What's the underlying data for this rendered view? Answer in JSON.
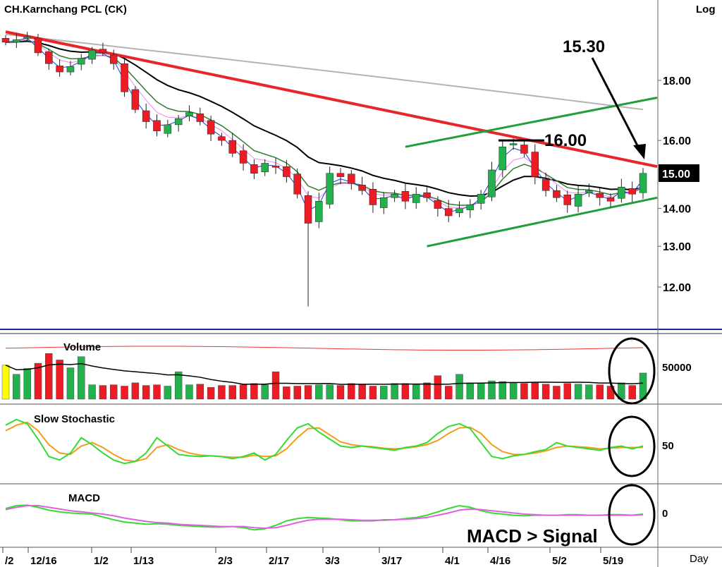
{
  "header": {
    "title": "CH.Karnchang  PCL  (CK)",
    "scale_label": "Log",
    "period_label": "Day"
  },
  "x_axis": {
    "labels": [
      "/2",
      "12/16",
      "1/2",
      "1/13",
      "2/3",
      "2/17",
      "3/3",
      "3/17",
      "4/1",
      "4/16",
      "5/2",
      "5/19"
    ]
  },
  "price_panel": {
    "y_ticks": [
      "18.00",
      "16.00",
      "15.00",
      "14.00",
      "13.00",
      "12.00"
    ],
    "last_price_tag": "15.00",
    "annotations": [
      "16.00",
      "15.30"
    ]
  },
  "volume_panel": {
    "title": "Volume",
    "y_tick": "50000"
  },
  "stochastic_panel": {
    "title": "Slow  Stochastic",
    "y_tick": "50"
  },
  "macd_panel": {
    "title": "MACD",
    "y_tick": "0",
    "note": "MACD > Signal"
  },
  "colors": {
    "up": "#22b14c",
    "down": "#ed1c24",
    "neutral_volume": "#ffff00",
    "resistance": "#e8262a",
    "channel": "#1f9e3a",
    "ma_black": "#000000",
    "ma_gray": "#b4b4b4",
    "ma_green": "#2f7d2f",
    "ma_pink": "#ee88ee",
    "ma_blue": "#1c3fd6",
    "stoch_k": "#32dc32",
    "stoch_d": "#f59b1a",
    "macd": "#32dc32",
    "signal": "#e060e0"
  },
  "chart_data": {
    "type": "candlestick",
    "title": "CH.Karnchang  PCL  (CK)",
    "scale": "log",
    "x_labels": [
      "/2",
      "12/16",
      "1/2",
      "1/13",
      "2/3",
      "2/17",
      "3/3",
      "3/17",
      "4/1",
      "4/16",
      "5/2",
      "5/19"
    ],
    "price_axis_ticks": [
      18,
      16,
      15,
      14,
      13,
      12
    ],
    "price_range": [
      11.6,
      20.0
    ],
    "last_close": 15.0,
    "closes_approx": [
      19.4,
      19.5,
      19.6,
      19.0,
      18.6,
      18.3,
      18.5,
      18.8,
      19.1,
      19.0,
      18.6,
      17.6,
      17.0,
      16.6,
      16.3,
      16.5,
      16.7,
      16.9,
      16.6,
      16.2,
      16.0,
      15.6,
      15.3,
      15.0,
      15.3,
      15.2,
      14.9,
      14.4,
      13.6,
      14.2,
      15.0,
      14.9,
      14.7,
      14.5,
      14.1,
      14.3,
      14.4,
      14.2,
      14.4,
      14.3,
      14.0,
      13.8,
      14.0,
      14.1,
      14.4,
      15.1,
      15.8,
      15.9,
      15.6,
      14.9,
      14.5,
      14.3,
      14.1,
      14.4,
      14.5,
      14.3,
      14.2,
      14.6,
      14.4,
      15.0
    ],
    "trendlines": [
      {
        "name": "resistance",
        "from": [
          0,
          19.8
        ],
        "to": [
          59,
          15.2
        ]
      },
      {
        "name": "channel-lower",
        "from": [
          39,
          13.0
        ],
        "to": [
          59,
          14.3
        ]
      },
      {
        "name": "channel-upper",
        "from": [
          37,
          15.8
        ],
        "to": [
          59,
          17.4
        ]
      }
    ],
    "annotations": [
      {
        "text": "16.00",
        "price": 16.0
      },
      {
        "text": "15.30",
        "price": 15.3
      }
    ],
    "volume": {
      "title": "Volume",
      "axis_tick": 50000,
      "values_approx": [
        52,
        38,
        47,
        55,
        70,
        60,
        48,
        65,
        22,
        21,
        22,
        20,
        25,
        21,
        22,
        20,
        42,
        22,
        23,
        18,
        21,
        21,
        22,
        24,
        22,
        42,
        19,
        20,
        21,
        22,
        22,
        21,
        24,
        23,
        20,
        20,
        24,
        24,
        22,
        25,
        36,
        20,
        38,
        25,
        25,
        28,
        27,
        25,
        24,
        25,
        23,
        20,
        24,
        23,
        22,
        22,
        20,
        25,
        21,
        40
      ]
    },
    "slow_stochastic": {
      "title": "Slow  Stochastic",
      "axis_tick": 50,
      "k_approx": [
        80,
        88,
        82,
        60,
        35,
        30,
        40,
        62,
        52,
        40,
        30,
        25,
        28,
        40,
        62,
        50,
        38,
        36,
        35,
        36,
        35,
        32,
        35,
        40,
        30,
        38,
        58,
        76,
        82,
        70,
        60,
        50,
        48,
        50,
        48,
        46,
        44,
        48,
        50,
        55,
        68,
        78,
        82,
        75,
        55,
        35,
        32,
        36,
        38,
        42,
        45,
        55,
        50,
        48,
        46,
        44,
        48,
        50,
        46,
        50
      ],
      "d_approx": [
        72,
        80,
        84,
        72,
        52,
        40,
        38,
        50,
        55,
        48,
        38,
        30,
        28,
        32,
        48,
        52,
        45,
        40,
        37,
        36,
        35,
        34,
        34,
        37,
        35,
        36,
        46,
        62,
        75,
        76,
        66,
        56,
        52,
        50,
        49,
        47,
        46,
        47,
        49,
        52,
        58,
        68,
        76,
        77,
        68,
        52,
        42,
        38,
        38,
        40,
        43,
        48,
        50,
        49,
        48,
        46,
        47,
        48,
        48,
        48
      ]
    },
    "macd": {
      "title": "MACD",
      "axis_tick": 0,
      "note": "MACD > Signal",
      "macd_approx": [
        0.1,
        0.15,
        0.16,
        0.12,
        0.07,
        0.04,
        0.02,
        0.01,
        0.0,
        -0.05,
        -0.1,
        -0.14,
        -0.16,
        -0.18,
        -0.17,
        -0.18,
        -0.2,
        -0.21,
        -0.22,
        -0.23,
        -0.23,
        -0.22,
        -0.24,
        -0.28,
        -0.26,
        -0.2,
        -0.12,
        -0.08,
        -0.06,
        -0.07,
        -0.08,
        -0.1,
        -0.12,
        -0.12,
        -0.12,
        -0.1,
        -0.1,
        -0.08,
        -0.06,
        -0.02,
        0.04,
        0.1,
        0.15,
        0.12,
        0.06,
        0.02,
        0.0,
        -0.02,
        -0.03,
        -0.02,
        -0.02,
        -0.02,
        -0.01,
        -0.01,
        -0.02,
        -0.02,
        -0.01,
        -0.01,
        -0.02,
        0.0
      ],
      "signal_approx": [
        0.08,
        0.12,
        0.15,
        0.15,
        0.12,
        0.09,
        0.06,
        0.04,
        0.02,
        0.0,
        -0.03,
        -0.07,
        -0.1,
        -0.13,
        -0.15,
        -0.16,
        -0.18,
        -0.19,
        -0.2,
        -0.21,
        -0.22,
        -0.22,
        -0.22,
        -0.24,
        -0.25,
        -0.24,
        -0.2,
        -0.15,
        -0.11,
        -0.09,
        -0.09,
        -0.09,
        -0.1,
        -0.11,
        -0.11,
        -0.11,
        -0.1,
        -0.09,
        -0.08,
        -0.06,
        -0.02,
        0.02,
        0.07,
        0.09,
        0.08,
        0.06,
        0.04,
        0.02,
        0.0,
        -0.01,
        -0.02,
        -0.02,
        -0.02,
        -0.02,
        -0.02,
        -0.02,
        -0.02,
        -0.02,
        -0.02,
        -0.01
      ]
    }
  }
}
